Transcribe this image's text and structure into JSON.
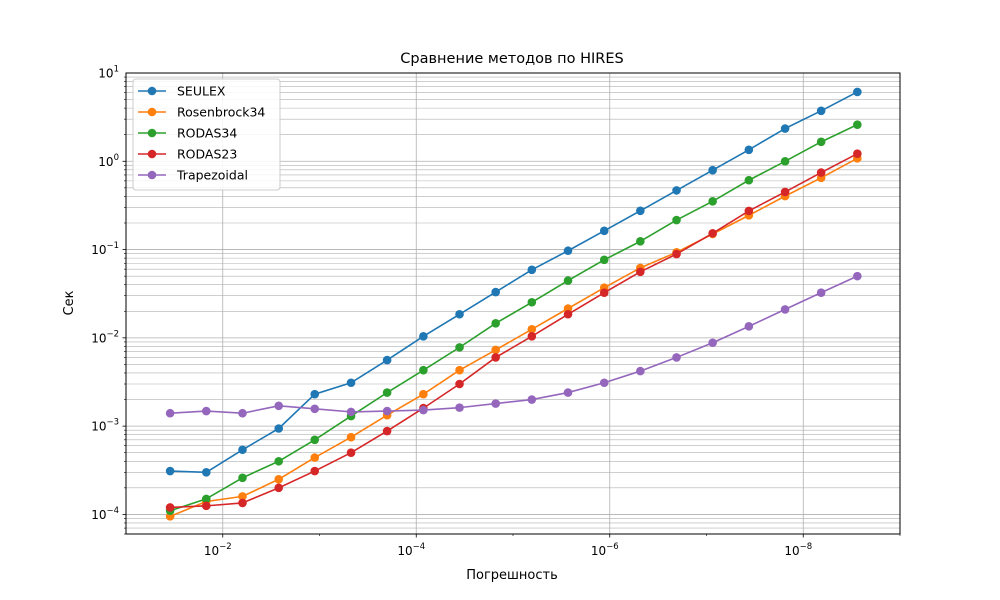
{
  "chart_data": {
    "type": "line",
    "title": "Сравнение методов по HIRES",
    "xlabel": "Погрешность",
    "ylabel": "Сек",
    "x_scale": "log",
    "y_scale": "log",
    "x_reversed": true,
    "xlim": [
      0.1,
      1e-09
    ],
    "ylim": [
      6e-05,
      10
    ],
    "grid": true,
    "legend_position": "top-left",
    "x_ticks": [
      {
        "value": 0.01,
        "base": "10",
        "exp": "−2"
      },
      {
        "value": 0.0001,
        "base": "10",
        "exp": "−4"
      },
      {
        "value": 1e-06,
        "base": "10",
        "exp": "−6"
      },
      {
        "value": 1e-08,
        "base": "10",
        "exp": "−8"
      }
    ],
    "y_ticks": [
      {
        "value": 0.0001,
        "base": "10",
        "exp": "−4"
      },
      {
        "value": 0.001,
        "base": "10",
        "exp": "−3"
      },
      {
        "value": 0.01,
        "base": "10",
        "exp": "−2"
      },
      {
        "value": 0.1,
        "base": "10",
        "exp": "−1"
      },
      {
        "value": 1,
        "base": "10",
        "exp": "0"
      },
      {
        "value": 10,
        "base": "10",
        "exp": "1"
      }
    ],
    "x": [
      0.035,
      0.0148,
      0.00625,
      0.00264,
      0.00112,
      0.000472,
      0.0002,
      8.44e-05,
      3.57e-05,
      1.51e-05,
      6.39e-06,
      2.7e-06,
      1.14e-06,
      4.83e-07,
      2.04e-07,
      8.64e-08,
      3.65e-08,
      1.54e-08,
      6.53e-09,
      2.76e-09
    ],
    "series": [
      {
        "name": "SEULEX",
        "color": "#1f77b4",
        "values": [
          0.00031,
          0.0003,
          0.00054,
          0.00094,
          0.0023,
          0.0031,
          0.0056,
          0.0104,
          0.0185,
          0.033,
          0.059,
          0.097,
          0.163,
          0.275,
          0.468,
          0.792,
          1.35,
          2.35,
          3.73,
          6.1
        ]
      },
      {
        "name": "Rosenbrock34",
        "color": "#ff7f0e",
        "values": [
          9.5e-05,
          0.00014,
          0.00016,
          0.00025,
          0.00044,
          0.00075,
          0.00133,
          0.0023,
          0.0043,
          0.0073,
          0.0125,
          0.0215,
          0.037,
          0.062,
          0.093,
          0.15,
          0.244,
          0.403,
          0.65,
          1.08
        ]
      },
      {
        "name": "RODAS34",
        "color": "#2ca02c",
        "values": [
          0.00011,
          0.00015,
          0.00026,
          0.0004,
          0.0007,
          0.0013,
          0.0024,
          0.0043,
          0.0078,
          0.0146,
          0.0253,
          0.0445,
          0.0765,
          0.124,
          0.216,
          0.352,
          0.61,
          1.0,
          1.66,
          2.6
        ]
      },
      {
        "name": "RODAS23",
        "color": "#d62728",
        "values": [
          0.00012,
          0.000125,
          0.000135,
          0.0002,
          0.00031,
          0.0005,
          0.00088,
          0.0016,
          0.003,
          0.006,
          0.0104,
          0.0185,
          0.0325,
          0.056,
          0.089,
          0.153,
          0.274,
          0.45,
          0.745,
          1.22
        ]
      },
      {
        "name": "Trapezoidal",
        "color": "#9467bd",
        "values": [
          0.0014,
          0.00148,
          0.0014,
          0.0017,
          0.00157,
          0.00145,
          0.00148,
          0.00152,
          0.00162,
          0.0018,
          0.002,
          0.0024,
          0.0031,
          0.0042,
          0.006,
          0.0088,
          0.0135,
          0.021,
          0.0325,
          0.05
        ]
      }
    ]
  }
}
